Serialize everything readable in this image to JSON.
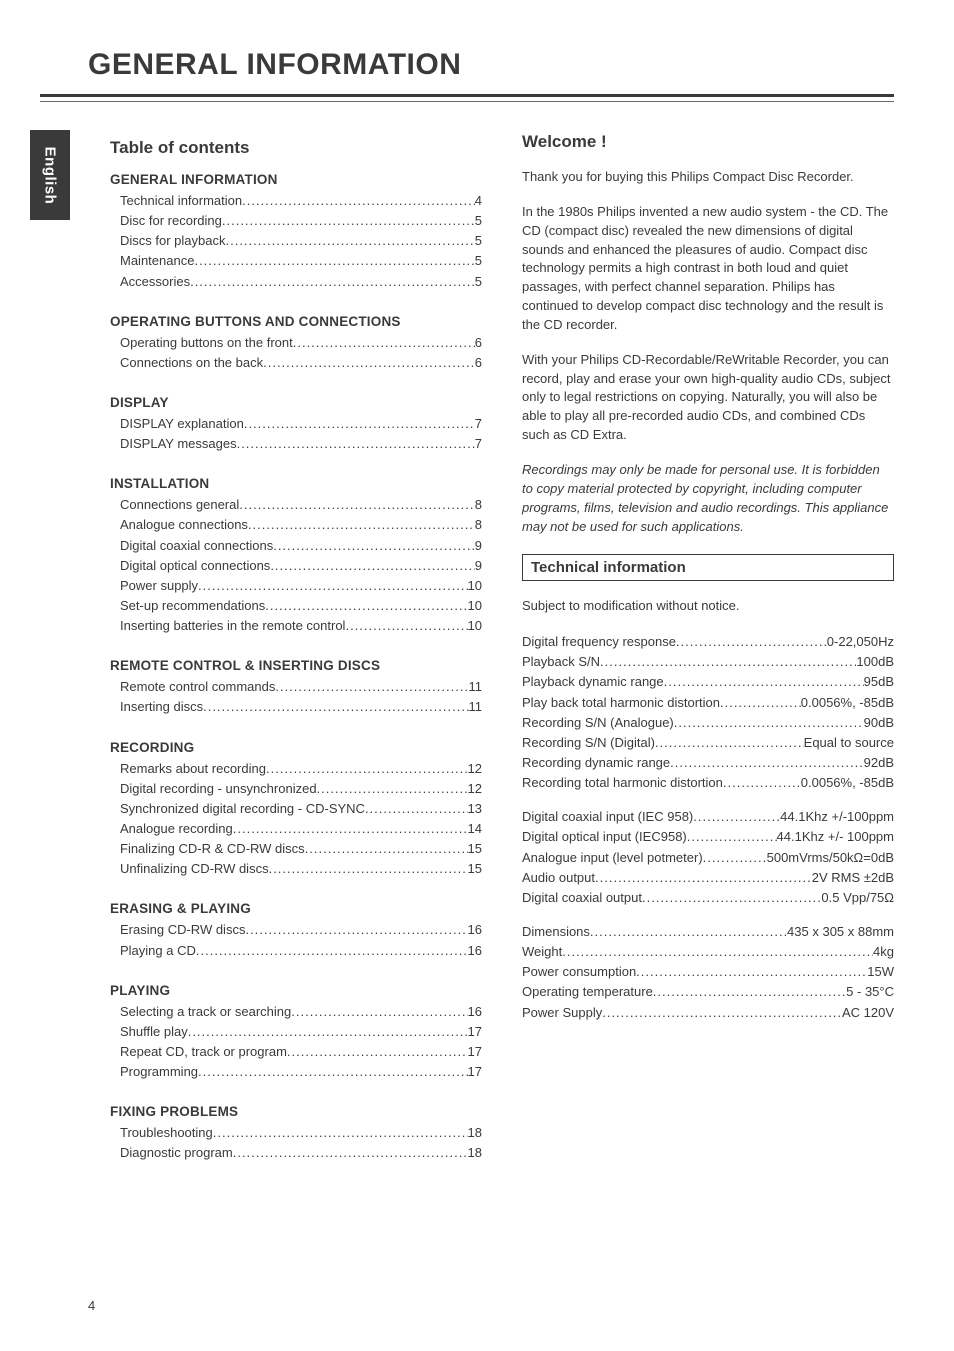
{
  "page_title": "GENERAL INFORMATION",
  "side_tab": "English",
  "page_number": "4",
  "left": {
    "heading": "Table of contents",
    "sections": [
      {
        "title": "GENERAL INFORMATION",
        "items": [
          {
            "label": "Technical information",
            "page": "4"
          },
          {
            "label": "Disc for recording",
            "page": "5"
          },
          {
            "label": "Discs for playback",
            "page": "5"
          },
          {
            "label": "Maintenance",
            "page": "5"
          },
          {
            "label": "Accessories",
            "page": "5"
          }
        ]
      },
      {
        "title": "OPERATING BUTTONS AND CONNECTIONS",
        "items": [
          {
            "label": "Operating buttons on the front",
            "page": "6"
          },
          {
            "label": "Connections on the back",
            "page": "6"
          }
        ]
      },
      {
        "title": "DISPLAY",
        "items": [
          {
            "label": "DISPLAY explanation",
            "page": "7"
          },
          {
            "label": "DISPLAY messages",
            "page": "7"
          }
        ]
      },
      {
        "title": "INSTALLATION",
        "items": [
          {
            "label": "Connections general",
            "page": "8"
          },
          {
            "label": "Analogue connections",
            "page": "8"
          },
          {
            "label": "Digital coaxial connections",
            "page": "9"
          },
          {
            "label": "Digital optical connections",
            "page": "9"
          },
          {
            "label": "Power supply",
            "page": "10"
          },
          {
            "label": "Set-up recommendations",
            "page": "10"
          },
          {
            "label": "Inserting batteries in the remote control",
            "page": "10"
          }
        ]
      },
      {
        "title": "REMOTE CONTROL & INSERTING DISCS",
        "items": [
          {
            "label": "Remote control commands",
            "page": "11"
          },
          {
            "label": "Inserting discs",
            "page": "11"
          }
        ]
      },
      {
        "title": "RECORDING",
        "items": [
          {
            "label": "Remarks about recording",
            "page": "12"
          },
          {
            "label": "Digital recording - unsynchronized",
            "page": "12"
          },
          {
            "label": "Synchronized digital recording - CD-SYNC",
            "page": "13"
          },
          {
            "label": "Analogue recording",
            "page": "14"
          },
          {
            "label": "Finalizing CD-R & CD-RW discs",
            "page": "15"
          },
          {
            "label": "Unfinalizing CD-RW discs",
            "page": "15"
          }
        ]
      },
      {
        "title": "ERASING & PLAYING",
        "items": [
          {
            "label": "Erasing CD-RW discs",
            "page": "16"
          },
          {
            "label": "Playing a CD",
            "page": "16"
          }
        ]
      },
      {
        "title": "PLAYING",
        "items": [
          {
            "label": "Selecting a track or searching",
            "page": "16"
          },
          {
            "label": "Shuffle play",
            "page": "17"
          },
          {
            "label": "Repeat CD, track or program",
            "page": "17"
          },
          {
            "label": "Programming",
            "page": "17"
          }
        ]
      },
      {
        "title": "FIXING PROBLEMS",
        "items": [
          {
            "label": "Troubleshooting",
            "page": "18"
          },
          {
            "label": "Diagnostic program",
            "page": "18"
          }
        ]
      }
    ]
  },
  "right": {
    "welcome_title": "Welcome !",
    "paragraphs": [
      "Thank you for buying this Philips Compact Disc Recorder.",
      "In the 1980s Philips invented a new audio system - the CD. The CD (compact disc) revealed the new dimensions of digital sounds and enhanced the pleasures of audio.\nCompact disc technology permits a high contrast in both loud and quiet passages, with perfect channel separation. Philips has continued to develop compact disc technology and the result is the CD recorder.",
      "With your Philips CD-Recordable/ReWritable Recorder, you can record, play and erase your own high-quality audio CDs, subject only to legal restrictions on copying.\nNaturally, you will also be able to play all pre-recorded audio CDs, and combined CDs such as CD Extra."
    ],
    "italic_para": "Recordings may only be made for personal use. It is forbidden to copy material protected by copyright, including computer programs, films, television and audio recordings. This appliance may not be used for such applications.",
    "tech_heading": "Technical information",
    "tech_intro": "Subject to modification without notice.",
    "spec_blocks": [
      [
        {
          "label": "Digital frequency response",
          "value": "0-22,050Hz"
        },
        {
          "label": "Playback S/N",
          "value": "100dB"
        },
        {
          "label": "Playback dynamic range",
          "value": "95dB"
        },
        {
          "label": "Play back total harmonic distortion",
          "value": "0.0056%, -85dB"
        },
        {
          "label": "Recording S/N (Analogue)",
          "value": "90dB"
        },
        {
          "label": "Recording S/N (Digital)",
          "value": "Equal to source"
        },
        {
          "label": "Recording dynamic range",
          "value": "92dB"
        },
        {
          "label": "Recording total harmonic distortion",
          "value": "0.0056%, -85dB"
        }
      ],
      [
        {
          "label": "Digital coaxial input (IEC 958)",
          "value": "44.1Khz +/-100ppm"
        },
        {
          "label": "Digital optical input (IEC958)",
          "value": "44.1Khz +/- 100ppm"
        },
        {
          "label": "Analogue input (level potmeter)",
          "value": "500mVrms/50kΩ=0dB"
        },
        {
          "label": "Audio output",
          "value": "2V RMS ±2dB"
        },
        {
          "label": "Digital coaxial output",
          "value": "0.5 Vpp/75Ω"
        }
      ],
      [
        {
          "label": "Dimensions",
          "value": "435 x 305 x 88mm"
        },
        {
          "label": "Weight",
          "value": "4kg"
        },
        {
          "label": "Power consumption",
          "value": "15W"
        },
        {
          "label": "Operating temperature",
          "value": "5 - 35°C"
        },
        {
          "label": "Power Supply",
          "value": "AC 120V"
        }
      ]
    ]
  }
}
